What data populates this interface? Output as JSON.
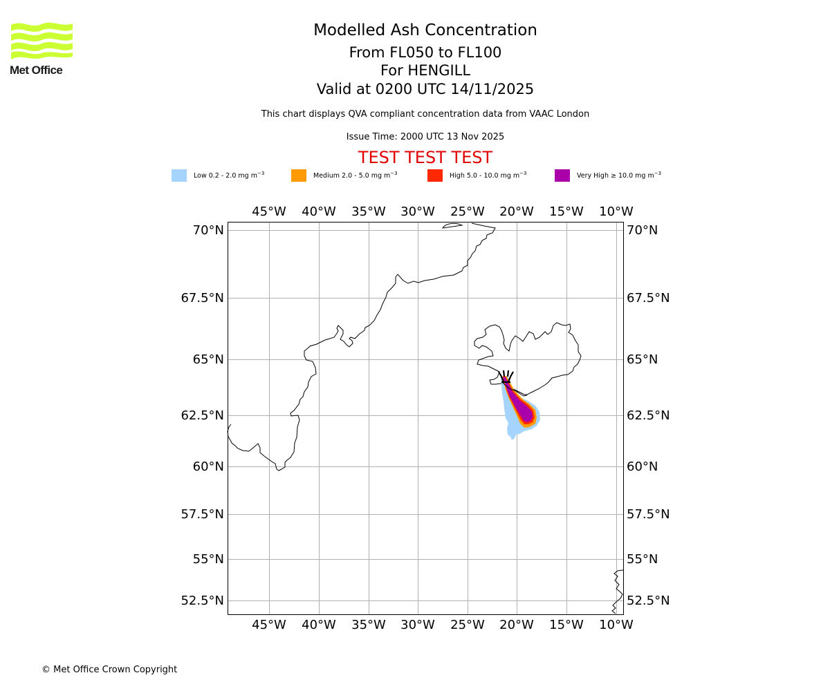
{
  "logo": {
    "name": "Met Office",
    "color": "#ccff33"
  },
  "titles": {
    "main": "Modelled Ash Concentration",
    "level": "From FL050 to FL100",
    "volcano": "For HENGILL",
    "valid": "Valid at 0200 UTC 14/11/2025",
    "description": "This chart displays QVA compliant concentration data from VAAC London",
    "issue_time": "Issue Time: 2000 UTC 13 Nov 2025",
    "test_banner": "TEST TEST TEST",
    "test_banner_color": "#e00000"
  },
  "legend": [
    {
      "label": "Low 0.2 - 2.0 mg m",
      "unit_exp": "−3",
      "color": "#a5d5ff"
    },
    {
      "label": "Medium 2.0 - 5.0 mg m",
      "unit_exp": "−3",
      "color": "#ff9a00"
    },
    {
      "label": "High 5.0 - 10.0 mg m",
      "unit_exp": "−3",
      "color": "#ff2800"
    },
    {
      "label": "Very High  ≥  10.0 mg m",
      "unit_exp": "−3",
      "color": "#aa00aa"
    }
  ],
  "map": {
    "projection": "mercator",
    "lon_range": [
      -49.2,
      -9.3
    ],
    "lat_range": [
      51.8,
      70.3
    ],
    "lon_ticks": [
      "45°W",
      "40°W",
      "35°W",
      "30°W",
      "25°W",
      "20°W",
      "15°W",
      "10°W"
    ],
    "lat_ticks": [
      "70°N",
      "67.5°N",
      "65°N",
      "62.5°N",
      "60°N",
      "57.5°N",
      "55°N",
      "52.5°N"
    ],
    "grid": true,
    "grid_color": "#b0b0b0",
    "volcano_marker": {
      "name": "HENGILL",
      "symbol": "volcano-icon"
    },
    "ash_levels_present": [
      "Low",
      "Medium",
      "High",
      "Very High"
    ]
  },
  "footer": {
    "copyright": "© Met Office Crown Copyright"
  }
}
